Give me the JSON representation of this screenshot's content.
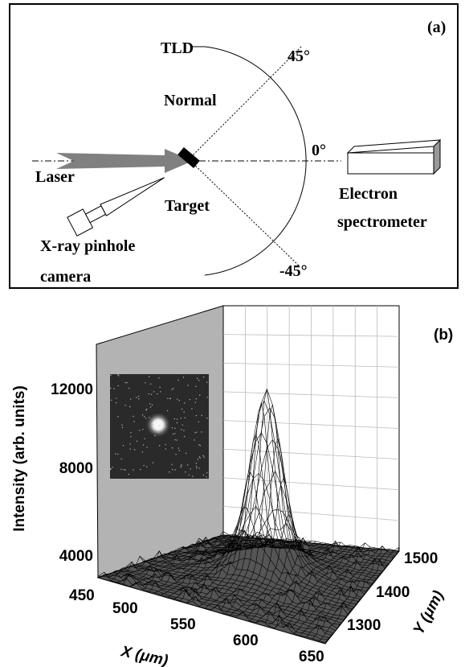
{
  "panel_a": {
    "label": "(a)",
    "tld": "TLD",
    "angle_pos": "45°",
    "normal": "Normal",
    "angle_zero": "0°",
    "angle_neg": "-45°",
    "laser": "Laser",
    "target": "Target",
    "spectrometer_1": "Electron",
    "spectrometer_2": "spectrometer",
    "camera_1": "X-ray pinhole",
    "camera_2": "camera"
  },
  "panel_b": {
    "label": "(b)",
    "z_title": "Intensity (arb. units)",
    "z_ticks": [
      4000,
      8000,
      12000
    ],
    "x_title": "X (μm)",
    "x_ticks": [
      450,
      500,
      550,
      600,
      650
    ],
    "y_title": "Y (μm)",
    "y_ticks": [
      1300,
      1400,
      1500
    ]
  }
}
